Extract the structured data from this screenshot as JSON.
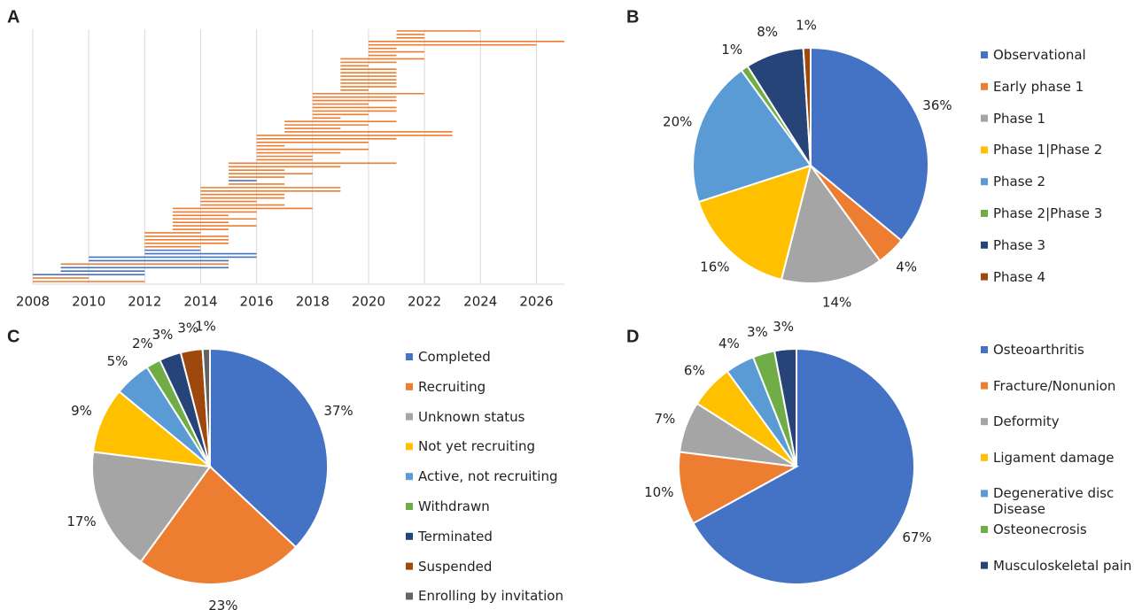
{
  "chart_data": [
    {
      "type": "gantt",
      "panel": "A",
      "start": [
        2008,
        2008,
        2008,
        2009,
        2009,
        2009,
        2010,
        2010,
        2012,
        2012,
        2012,
        2012,
        2012,
        2012,
        2012,
        2013,
        2013,
        2013,
        2013,
        2013,
        2013,
        2013,
        2014,
        2014,
        2014,
        2014,
        2014,
        2014,
        2015,
        2015,
        2015,
        2015,
        2015,
        2015,
        2015,
        2016,
        2016,
        2016,
        2016,
        2016,
        2016,
        2016,
        2016,
        2017,
        2017,
        2017,
        2017,
        2018,
        2018,
        2018,
        2018,
        2018,
        2018,
        2018,
        2018,
        2019,
        2019,
        2019,
        2019,
        2019,
        2019,
        2019,
        2019,
        2019,
        2019,
        2020,
        2020,
        2020,
        2020,
        2020,
        2021,
        2021,
        2021
      ],
      "end": [
        2012,
        2010,
        2012,
        2012,
        2015,
        2015,
        2015,
        2016,
        2016,
        2014,
        2014,
        2015,
        2015,
        2015,
        2014,
        2015,
        2016,
        2015,
        2016,
        2015,
        2016,
        2018,
        2017,
        2016,
        2017,
        2017,
        2019,
        2019,
        2017,
        2016,
        2017,
        2018,
        2017,
        2019,
        2021,
        2018,
        2018,
        2019,
        2020,
        2017,
        2020,
        2021,
        2023,
        2023,
        2019,
        2020,
        2021,
        2019,
        2020,
        2021,
        2021,
        2020,
        2021,
        2021,
        2022,
        2020,
        2021,
        2021,
        2021,
        2021,
        2021,
        2021,
        2020,
        2021,
        2022,
        2021,
        2022,
        2021,
        2026,
        2027,
        2022,
        2022,
        2024
      ],
      "colors": [
        "#ed7d31",
        "#ed7d31",
        "#4472c4",
        "#4472c4",
        "#4472c4",
        "#ed7d31",
        "#4472c4",
        "#4472c4",
        "#4472c4",
        "#4472c4",
        "#ed7d31",
        "#ed7d31",
        "#ed7d31",
        "#ed7d31",
        "#ed7d31",
        "#ed7d31",
        "#ed7d31",
        "#ed7d31",
        "#ed7d31",
        "#ed7d31",
        "#ed7d31",
        "#ed7d31",
        "#ed7d31",
        "#ed7d31",
        "#ed7d31",
        "#ed7d31",
        "#ed7d31",
        "#ed7d31",
        "#ed7d31",
        "#4472c4",
        "#ed7d31",
        "#ed7d31",
        "#ed7d31",
        "#ed7d31",
        "#ed7d31",
        "#ed7d31",
        "#ed7d31",
        "#ed7d31",
        "#ed7d31",
        "#ed7d31",
        "#ed7d31",
        "#ed7d31",
        "#ed7d31",
        "#ed7d31",
        "#ed7d31",
        "#ed7d31",
        "#ed7d31",
        "#ed7d31",
        "#ed7d31",
        "#ed7d31",
        "#ed7d31",
        "#ed7d31",
        "#ed7d31",
        "#ed7d31",
        "#ed7d31",
        "#ed7d31",
        "#ed7d31",
        "#ed7d31",
        "#ed7d31",
        "#ed7d31",
        "#ed7d31",
        "#ed7d31",
        "#ed7d31",
        "#ed7d31",
        "#ed7d31",
        "#ed7d31",
        "#ed7d31",
        "#ed7d31",
        "#ed7d31",
        "#ed7d31",
        "#ed7d31",
        "#ed7d31",
        "#ed7d31"
      ],
      "xlim": [
        2008,
        2027
      ],
      "xticks": [
        2008,
        2010,
        2012,
        2014,
        2016,
        2018,
        2020,
        2022,
        2024,
        2026
      ],
      "grid": true
    },
    {
      "type": "pie",
      "panel": "B",
      "categories": [
        "Observational",
        "Early phase 1",
        "Phase 1",
        "Phase 1|Phase 2",
        "Phase 2",
        "Phase 2|Phase 3",
        "Phase 3",
        "Phase 4"
      ],
      "values": [
        36,
        4,
        14,
        16,
        20,
        1,
        8,
        1
      ],
      "value_labels": [
        "36%",
        "4%",
        "14%",
        "16%",
        "20%",
        "1%",
        "8%",
        "1%"
      ],
      "colors": [
        "#4472c4",
        "#ed7d31",
        "#a5a5a5",
        "#ffc000",
        "#5b9bd5",
        "#70ad47",
        "#264478",
        "#9e480e"
      ]
    },
    {
      "type": "pie",
      "panel": "C",
      "categories": [
        "Completed",
        "Recruiting",
        "Unknown status",
        "Not yet recruiting",
        "Active, not recruiting",
        "Withdrawn",
        "Terminated",
        "Suspended",
        "Enrolling by invitation"
      ],
      "values": [
        37,
        23,
        17,
        9,
        5,
        2,
        3,
        3,
        1
      ],
      "value_labels": [
        "37%",
        "23%",
        "17%",
        "9%",
        "5%",
        "2%",
        "3%",
        "3%",
        "1%"
      ],
      "colors": [
        "#4472c4",
        "#ed7d31",
        "#a5a5a5",
        "#ffc000",
        "#5b9bd5",
        "#70ad47",
        "#264478",
        "#9e480e",
        "#636363"
      ]
    },
    {
      "type": "pie",
      "panel": "D",
      "categories": [
        "Osteoarthritis",
        "Fracture/Nonunion",
        "Deformity",
        "Ligament damage",
        "Degenerative disc Disease",
        "Osteonecrosis",
        "Musculoskeletal pain"
      ],
      "values": [
        67,
        10,
        7,
        6,
        4,
        3,
        3
      ],
      "value_labels": [
        "67%",
        "10%",
        "7%",
        "6%",
        "4%",
        "3%",
        "3%"
      ],
      "colors": [
        "#4472c4",
        "#ed7d31",
        "#a5a5a5",
        "#ffc000",
        "#5b9bd5",
        "#70ad47",
        "#264478"
      ]
    }
  ]
}
